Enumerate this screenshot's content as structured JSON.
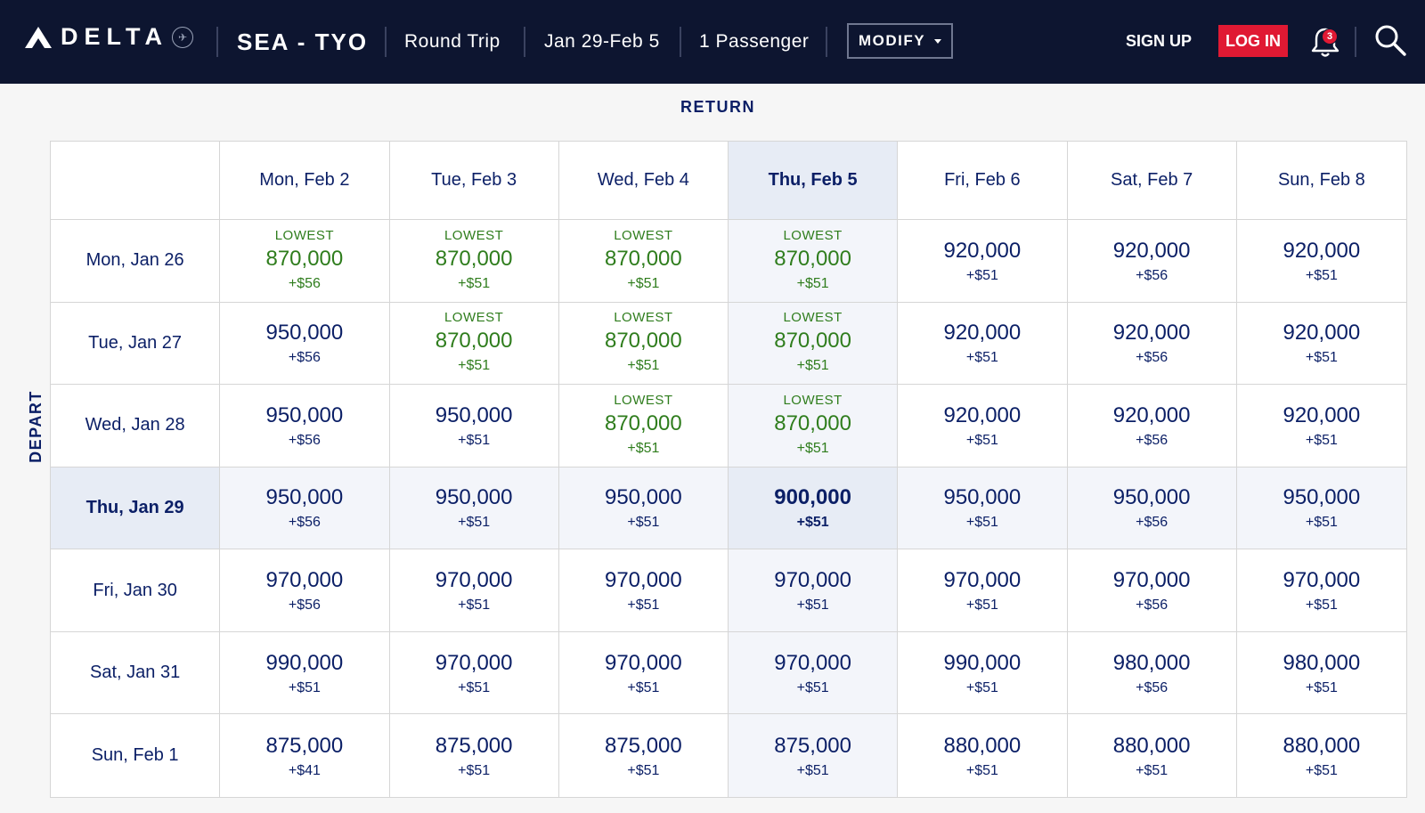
{
  "header": {
    "brand": "DELTA",
    "route": "SEA - TYO",
    "trip_type": "Round Trip",
    "dates": "Jan 29-Feb 5",
    "passengers": "1 Passenger",
    "modify_label": "MODIFY",
    "signup_label": "SIGN UP",
    "login_label": "LOG IN",
    "notification_count": "3",
    "colors": {
      "bar": "#0d1530",
      "login": "#e01933"
    }
  },
  "grid": {
    "return_label": "RETURN",
    "depart_label": "DEPART",
    "lowest_label": "LOWEST",
    "selected_return_index": 3,
    "selected_depart_index": 3,
    "columns": [
      "Mon, Feb 2",
      "Tue, Feb 3",
      "Wed, Feb 4",
      "Thu, Feb 5",
      "Fri, Feb 6",
      "Sat, Feb 7",
      "Sun, Feb 8"
    ],
    "rows": [
      {
        "label": "Mon, Jan 26",
        "cells": [
          {
            "price": "870,000",
            "fee": "+$56",
            "lowest": true
          },
          {
            "price": "870,000",
            "fee": "+$51",
            "lowest": true
          },
          {
            "price": "870,000",
            "fee": "+$51",
            "lowest": true
          },
          {
            "price": "870,000",
            "fee": "+$51",
            "lowest": true
          },
          {
            "price": "920,000",
            "fee": "+$51",
            "lowest": false
          },
          {
            "price": "920,000",
            "fee": "+$56",
            "lowest": false
          },
          {
            "price": "920,000",
            "fee": "+$51",
            "lowest": false
          }
        ]
      },
      {
        "label": "Tue, Jan 27",
        "cells": [
          {
            "price": "950,000",
            "fee": "+$56",
            "lowest": false
          },
          {
            "price": "870,000",
            "fee": "+$51",
            "lowest": true
          },
          {
            "price": "870,000",
            "fee": "+$51",
            "lowest": true
          },
          {
            "price": "870,000",
            "fee": "+$51",
            "lowest": true
          },
          {
            "price": "920,000",
            "fee": "+$51",
            "lowest": false
          },
          {
            "price": "920,000",
            "fee": "+$56",
            "lowest": false
          },
          {
            "price": "920,000",
            "fee": "+$51",
            "lowest": false
          }
        ]
      },
      {
        "label": "Wed, Jan 28",
        "cells": [
          {
            "price": "950,000",
            "fee": "+$56",
            "lowest": false
          },
          {
            "price": "950,000",
            "fee": "+$51",
            "lowest": false
          },
          {
            "price": "870,000",
            "fee": "+$51",
            "lowest": true
          },
          {
            "price": "870,000",
            "fee": "+$51",
            "lowest": true
          },
          {
            "price": "920,000",
            "fee": "+$51",
            "lowest": false
          },
          {
            "price": "920,000",
            "fee": "+$56",
            "lowest": false
          },
          {
            "price": "920,000",
            "fee": "+$51",
            "lowest": false
          }
        ]
      },
      {
        "label": "Thu, Jan 29",
        "cells": [
          {
            "price": "950,000",
            "fee": "+$56",
            "lowest": false
          },
          {
            "price": "950,000",
            "fee": "+$51",
            "lowest": false
          },
          {
            "price": "950,000",
            "fee": "+$51",
            "lowest": false
          },
          {
            "price": "900,000",
            "fee": "+$51",
            "lowest": false
          },
          {
            "price": "950,000",
            "fee": "+$51",
            "lowest": false
          },
          {
            "price": "950,000",
            "fee": "+$56",
            "lowest": false
          },
          {
            "price": "950,000",
            "fee": "+$51",
            "lowest": false
          }
        ]
      },
      {
        "label": "Fri, Jan 30",
        "cells": [
          {
            "price": "970,000",
            "fee": "+$56",
            "lowest": false
          },
          {
            "price": "970,000",
            "fee": "+$51",
            "lowest": false
          },
          {
            "price": "970,000",
            "fee": "+$51",
            "lowest": false
          },
          {
            "price": "970,000",
            "fee": "+$51",
            "lowest": false
          },
          {
            "price": "970,000",
            "fee": "+$51",
            "lowest": false
          },
          {
            "price": "970,000",
            "fee": "+$56",
            "lowest": false
          },
          {
            "price": "970,000",
            "fee": "+$51",
            "lowest": false
          }
        ]
      },
      {
        "label": "Sat, Jan 31",
        "cells": [
          {
            "price": "990,000",
            "fee": "+$51",
            "lowest": false
          },
          {
            "price": "970,000",
            "fee": "+$51",
            "lowest": false
          },
          {
            "price": "970,000",
            "fee": "+$51",
            "lowest": false
          },
          {
            "price": "970,000",
            "fee": "+$51",
            "lowest": false
          },
          {
            "price": "990,000",
            "fee": "+$51",
            "lowest": false
          },
          {
            "price": "980,000",
            "fee": "+$56",
            "lowest": false
          },
          {
            "price": "980,000",
            "fee": "+$51",
            "lowest": false
          }
        ]
      },
      {
        "label": "Sun, Feb 1",
        "cells": [
          {
            "price": "875,000",
            "fee": "+$41",
            "lowest": false
          },
          {
            "price": "875,000",
            "fee": "+$51",
            "lowest": false
          },
          {
            "price": "875,000",
            "fee": "+$51",
            "lowest": false
          },
          {
            "price": "875,000",
            "fee": "+$51",
            "lowest": false
          },
          {
            "price": "880,000",
            "fee": "+$51",
            "lowest": false
          },
          {
            "price": "880,000",
            "fee": "+$51",
            "lowest": false
          },
          {
            "price": "880,000",
            "fee": "+$51",
            "lowest": false
          }
        ]
      }
    ]
  }
}
